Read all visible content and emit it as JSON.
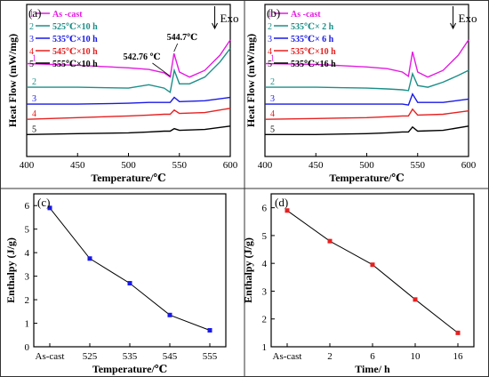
{
  "chart_data": [
    {
      "panel": "(a)",
      "type": "line",
      "xlabel": "Temperature/℃",
      "ylabel": "Heat Flow (mW/mg)",
      "xlim": [
        400,
        600
      ],
      "xticks": [
        "400",
        "450",
        "500",
        "550",
        "600"
      ],
      "annotations": [
        "Exo",
        "544.7℃",
        "542.76 ℃"
      ],
      "peaks": [
        544.7,
        542.76
      ],
      "legend_position": "top-left",
      "series": [
        {
          "name": "As -cast",
          "label": "1",
          "color": "#e31be0",
          "peak": 544.7,
          "x": [
            400,
            450,
            500,
            520,
            535,
            541,
            544.7,
            550,
            560,
            575,
            590,
            600
          ],
          "y": [
            7.0,
            6.9,
            6.75,
            6.65,
            6.45,
            6.2,
            7.6,
            6.5,
            6.2,
            6.6,
            7.5,
            8.4
          ]
        },
        {
          "name": "525℃×10 h",
          "label": "2",
          "color": "#1b8f88",
          "peak": 544.7,
          "x": [
            400,
            450,
            500,
            520,
            535,
            541,
            545,
            550,
            560,
            575,
            590,
            600
          ],
          "y": [
            5.6,
            5.6,
            5.55,
            5.75,
            5.55,
            5.3,
            6.6,
            5.8,
            5.8,
            6.2,
            7.1,
            7.9
          ]
        },
        {
          "name": "535℃×10 h",
          "label": "3",
          "color": "#1919e6",
          "peak": 544.7,
          "x": [
            400,
            450,
            500,
            520,
            535,
            541,
            545,
            550,
            575,
            600
          ],
          "y": [
            4.6,
            4.6,
            4.65,
            4.7,
            4.7,
            4.7,
            5.0,
            4.75,
            4.8,
            5.0
          ]
        },
        {
          "name": "545℃×10 h",
          "label": "4",
          "color": "#e62020",
          "peak": 544.7,
          "x": [
            400,
            450,
            500,
            520,
            535,
            541,
            545,
            550,
            575,
            600
          ],
          "y": [
            3.7,
            3.8,
            3.9,
            3.95,
            4.0,
            4.0,
            4.25,
            4.05,
            4.1,
            4.35
          ]
        },
        {
          "name": "555℃×10 h",
          "label": "5",
          "color": "#000000",
          "peak": 544.7,
          "x": [
            400,
            450,
            500,
            520,
            535,
            541,
            545,
            550,
            575,
            600
          ],
          "y": [
            2.8,
            2.85,
            2.9,
            2.95,
            3.0,
            3.0,
            3.15,
            3.05,
            3.1,
            3.3
          ]
        }
      ]
    },
    {
      "panel": "(b)",
      "type": "line",
      "xlabel": "Temperature/℃",
      "ylabel": "Heat Flow (mW/mg)",
      "xlim": [
        400,
        600
      ],
      "xticks": [
        "400",
        "450",
        "500",
        "550",
        "600"
      ],
      "annotations": [
        "Exo"
      ],
      "legend_position": "top-left",
      "series": [
        {
          "name": "As -cast",
          "label": "1",
          "color": "#e31be0",
          "x": [
            400,
            450,
            500,
            520,
            535,
            541,
            545,
            550,
            560,
            575,
            590,
            600
          ],
          "y": [
            7.0,
            6.95,
            6.8,
            6.7,
            6.5,
            6.25,
            7.7,
            6.5,
            6.2,
            6.6,
            7.5,
            8.4
          ]
        },
        {
          "name": "535℃× 2 h",
          "label": "2",
          "color": "#1b8f88",
          "x": [
            400,
            450,
            500,
            520,
            535,
            541,
            545,
            550,
            560,
            575,
            590,
            600
          ],
          "y": [
            5.6,
            5.6,
            5.55,
            5.5,
            5.45,
            5.4,
            6.4,
            5.7,
            5.6,
            5.9,
            6.3,
            6.6
          ]
        },
        {
          "name": "535℃× 6 h",
          "label": "3",
          "color": "#1919e6",
          "x": [
            400,
            450,
            500,
            520,
            535,
            541,
            545,
            550,
            575,
            600
          ],
          "y": [
            4.6,
            4.6,
            4.6,
            4.6,
            4.6,
            4.55,
            5.2,
            4.7,
            4.7,
            4.9
          ]
        },
        {
          "name": "535℃×10 h",
          "label": "4",
          "color": "#e62020",
          "x": [
            400,
            450,
            500,
            520,
            535,
            541,
            545,
            550,
            575,
            600
          ],
          "y": [
            3.7,
            3.75,
            3.8,
            3.85,
            3.9,
            3.9,
            4.3,
            3.95,
            4.0,
            4.2
          ]
        },
        {
          "name": "535℃×16 h",
          "label": "5",
          "color": "#000000",
          "x": [
            400,
            450,
            500,
            520,
            535,
            541,
            545,
            550,
            575,
            600
          ],
          "y": [
            2.8,
            2.8,
            2.85,
            2.9,
            2.95,
            2.95,
            3.25,
            3.0,
            3.05,
            3.3
          ]
        }
      ]
    },
    {
      "panel": "(c)",
      "type": "line",
      "xlabel": "Temperature/℃",
      "ylabel": "Enthalpy (J/g)",
      "categories": [
        "As-cast",
        "525",
        "535",
        "545",
        "555"
      ],
      "values": [
        5.9,
        3.75,
        2.7,
        1.35,
        0.7
      ],
      "ylim": [
        0,
        6.5
      ],
      "yticks": [
        0,
        1,
        2,
        3,
        4,
        5,
        6
      ],
      "color": "#1919e6"
    },
    {
      "panel": "(d)",
      "type": "line",
      "xlabel": "Time/  h",
      "ylabel": "Enthalpy (J/g)",
      "categories": [
        "As-cast",
        "2",
        "6",
        "10",
        "16"
      ],
      "values": [
        5.9,
        4.8,
        3.95,
        2.7,
        1.5
      ],
      "ylim": [
        1,
        6.5
      ],
      "yticks": [
        1,
        2,
        3,
        4,
        5,
        6
      ],
      "color": "#e62020"
    }
  ]
}
